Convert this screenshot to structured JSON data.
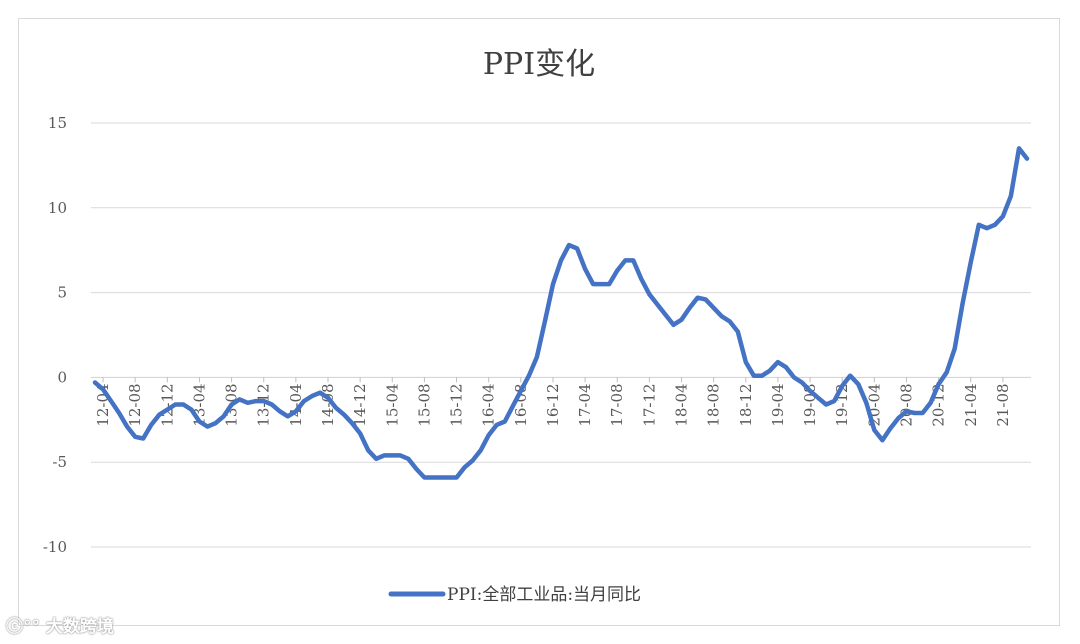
{
  "chart_data": {
    "type": "line",
    "title": "PPI变化",
    "xlabel": "",
    "ylabel": "",
    "ylim": [
      -10,
      15
    ],
    "yticks": [
      -10,
      -5,
      0,
      5,
      10,
      15
    ],
    "grid": true,
    "legend": "bottom-center",
    "x_tick_labels": [
      "12-04",
      "12-08",
      "12-12",
      "13-04",
      "13-08",
      "13-12",
      "14-04",
      "14-08",
      "14-12",
      "15-04",
      "15-08",
      "15-12",
      "16-04",
      "16-08",
      "16-12",
      "17-04",
      "17-08",
      "17-12",
      "18-04",
      "18-08",
      "18-12",
      "19-04",
      "19-08",
      "19-12",
      "20-04",
      "20-08",
      "20-12",
      "21-04",
      "21-08"
    ],
    "series": [
      {
        "name": "PPI:全部工业品:当月同比",
        "color": "#4472c4",
        "x": [
          "12-03",
          "12-04",
          "12-05",
          "12-06",
          "12-07",
          "12-08",
          "12-09",
          "12-10",
          "12-11",
          "12-12",
          "13-01",
          "13-02",
          "13-03",
          "13-04",
          "13-05",
          "13-06",
          "13-07",
          "13-08",
          "13-09",
          "13-10",
          "13-11",
          "13-12",
          "14-01",
          "14-02",
          "14-03",
          "14-04",
          "14-05",
          "14-06",
          "14-07",
          "14-08",
          "14-09",
          "14-10",
          "14-11",
          "14-12",
          "15-01",
          "15-02",
          "15-03",
          "15-04",
          "15-05",
          "15-06",
          "15-07",
          "15-08",
          "15-09",
          "15-10",
          "15-11",
          "15-12",
          "16-01",
          "16-02",
          "16-03",
          "16-04",
          "16-05",
          "16-06",
          "16-07",
          "16-08",
          "16-09",
          "16-10",
          "16-11",
          "16-12",
          "17-01",
          "17-02",
          "17-03",
          "17-04",
          "17-05",
          "17-06",
          "17-07",
          "17-08",
          "17-09",
          "17-10",
          "17-11",
          "17-12",
          "18-01",
          "18-02",
          "18-03",
          "18-04",
          "18-05",
          "18-06",
          "18-07",
          "18-08",
          "18-09",
          "18-10",
          "18-11",
          "18-12",
          "19-01",
          "19-02",
          "19-03",
          "19-04",
          "19-05",
          "19-06",
          "19-07",
          "19-08",
          "19-09",
          "19-10",
          "19-11",
          "19-12",
          "20-01",
          "20-02",
          "20-03",
          "20-04",
          "20-05",
          "20-06",
          "20-07",
          "20-08",
          "20-09",
          "20-10",
          "20-11",
          "20-12",
          "21-01",
          "21-02",
          "21-03",
          "21-04",
          "21-05",
          "21-06",
          "21-07",
          "21-08",
          "21-09",
          "21-10",
          "21-11"
        ],
        "values": [
          -0.3,
          -0.7,
          -1.4,
          -2.1,
          -2.9,
          -3.5,
          -3.6,
          -2.8,
          -2.2,
          -1.9,
          -1.6,
          -1.6,
          -1.9,
          -2.6,
          -2.9,
          -2.7,
          -2.3,
          -1.6,
          -1.3,
          -1.5,
          -1.4,
          -1.4,
          -1.6,
          -2.0,
          -2.3,
          -2.0,
          -1.4,
          -1.1,
          -0.9,
          -1.2,
          -1.8,
          -2.2,
          -2.7,
          -3.3,
          -4.3,
          -4.8,
          -4.6,
          -4.6,
          -4.6,
          -4.8,
          -5.4,
          -5.9,
          -5.9,
          -5.9,
          -5.9,
          -5.9,
          -5.3,
          -4.9,
          -4.3,
          -3.4,
          -2.8,
          -2.6,
          -1.7,
          -0.8,
          0.1,
          1.2,
          3.3,
          5.5,
          6.9,
          7.8,
          7.6,
          6.4,
          5.5,
          5.5,
          5.5,
          6.3,
          6.9,
          6.9,
          5.8,
          4.9,
          4.3,
          3.7,
          3.1,
          3.4,
          4.1,
          4.7,
          4.6,
          4.1,
          3.6,
          3.3,
          2.7,
          0.9,
          0.1,
          0.1,
          0.4,
          0.9,
          0.6,
          0.0,
          -0.3,
          -0.8,
          -1.2,
          -1.6,
          -1.4,
          -0.5,
          0.1,
          -0.4,
          -1.5,
          -3.1,
          -3.7,
          -3.0,
          -2.4,
          -2.0,
          -2.1,
          -2.1,
          -1.5,
          -0.4,
          0.3,
          1.7,
          4.4,
          6.8,
          9.0,
          8.8,
          9.0,
          9.5,
          10.7,
          13.5,
          12.9
        ]
      }
    ]
  },
  "watermark": {
    "text": "大数跨境"
  }
}
